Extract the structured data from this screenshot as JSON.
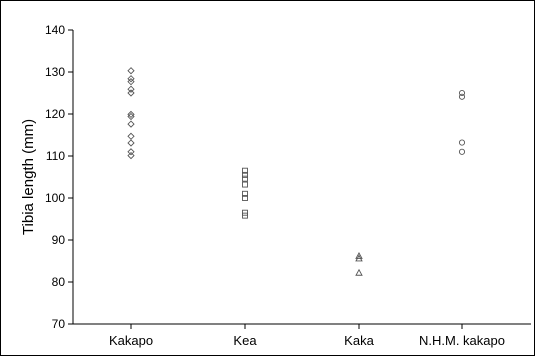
{
  "chart_data": {
    "type": "scatter",
    "title": "",
    "xlabel": "",
    "ylabel": "Tibia length (mm)",
    "ylim": [
      70,
      140
    ],
    "yticks": [
      70,
      80,
      90,
      100,
      110,
      120,
      130,
      140
    ],
    "categories": [
      "Kakapo",
      "Kea",
      "Kaka",
      "N.H.M. kakapo"
    ],
    "grid": false,
    "legend": "none",
    "colors": {
      "marker_stroke": "#555555",
      "axis": "#000000",
      "background": "#ffffff"
    },
    "series": [
      {
        "category": "Kakapo",
        "marker": "diamond",
        "values": [
          130.3,
          128.4,
          127.7,
          125.9,
          125.0,
          119.9,
          119.4,
          117.6,
          114.7,
          113.1,
          111.0,
          110.1
        ]
      },
      {
        "category": "Kea",
        "marker": "square",
        "values": [
          106.5,
          105.5,
          104.6,
          103.2,
          101.0,
          100.0,
          96.5,
          95.8
        ]
      },
      {
        "category": "Kaka",
        "marker": "triangle",
        "values": [
          86.2,
          85.6,
          82.2
        ]
      },
      {
        "category": "N.H.M. kakapo",
        "marker": "circle",
        "values": [
          125.0,
          124.1,
          113.2,
          111.0
        ]
      }
    ]
  }
}
